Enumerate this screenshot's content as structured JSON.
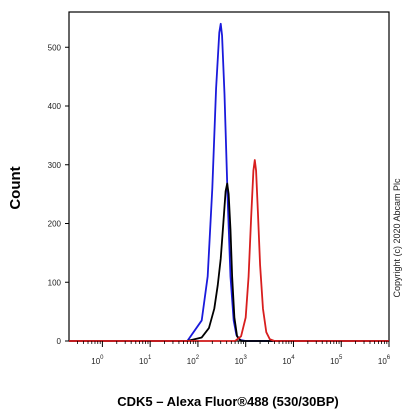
{
  "chart_data": {
    "type": "line",
    "xlabel": "CDK5 – Alexa Fluor®488 (530/30BP)",
    "ylabel": "Count",
    "x_scale": "log",
    "xlim": [
      0.2,
      1000000
    ],
    "ylim": [
      0,
      560
    ],
    "x_ticks": [
      {
        "base": "10",
        "exp": "0",
        "value": 1
      },
      {
        "base": "10",
        "exp": "1",
        "value": 10
      },
      {
        "base": "10",
        "exp": "2",
        "value": 100
      },
      {
        "base": "10",
        "exp": "3",
        "value": 1000
      },
      {
        "base": "10",
        "exp": "4",
        "value": 10000
      },
      {
        "base": "10",
        "exp": "5",
        "value": 100000
      },
      {
        "base": "10",
        "exp": "6",
        "value": 1000000
      }
    ],
    "y_ticks": [
      "0",
      "100",
      "200",
      "300",
      "400",
      "500"
    ],
    "y_tick_values": [
      0,
      100,
      200,
      300,
      400,
      500
    ],
    "grid": false,
    "legend": "none",
    "series": [
      {
        "color": "#1a1adc",
        "x": [
          0.2,
          60,
          120,
          160,
          200,
          240,
          280,
          300,
          320,
          360,
          420,
          480,
          560,
          640,
          760,
          1000,
          1000000
        ],
        "y": [
          0,
          0,
          35,
          110,
          260,
          430,
          525,
          540,
          520,
          420,
          240,
          110,
          35,
          10,
          2,
          0,
          0
        ]
      },
      {
        "color": "#000000",
        "x": [
          0.2,
          60,
          120,
          170,
          220,
          260,
          300,
          340,
          380,
          410,
          440,
          480,
          520,
          580,
          660,
          800,
          1000000
        ],
        "y": [
          0,
          0,
          6,
          22,
          55,
          95,
          140,
          200,
          255,
          268,
          250,
          190,
          110,
          40,
          8,
          0,
          0
        ]
      },
      {
        "color": "#d81e1e",
        "x": [
          0.2,
          600,
          800,
          1000,
          1150,
          1300,
          1450,
          1550,
          1650,
          1800,
          2000,
          2300,
          2700,
          3200,
          4000,
          1000000
        ],
        "y": [
          0,
          0,
          8,
          40,
          110,
          210,
          290,
          308,
          290,
          220,
          130,
          55,
          15,
          3,
          0,
          0
        ]
      }
    ]
  },
  "copyright": "Copyright (c) 2020 Abcam Plc",
  "colors": {
    "axis": "#000000",
    "background": "#ffffff"
  }
}
